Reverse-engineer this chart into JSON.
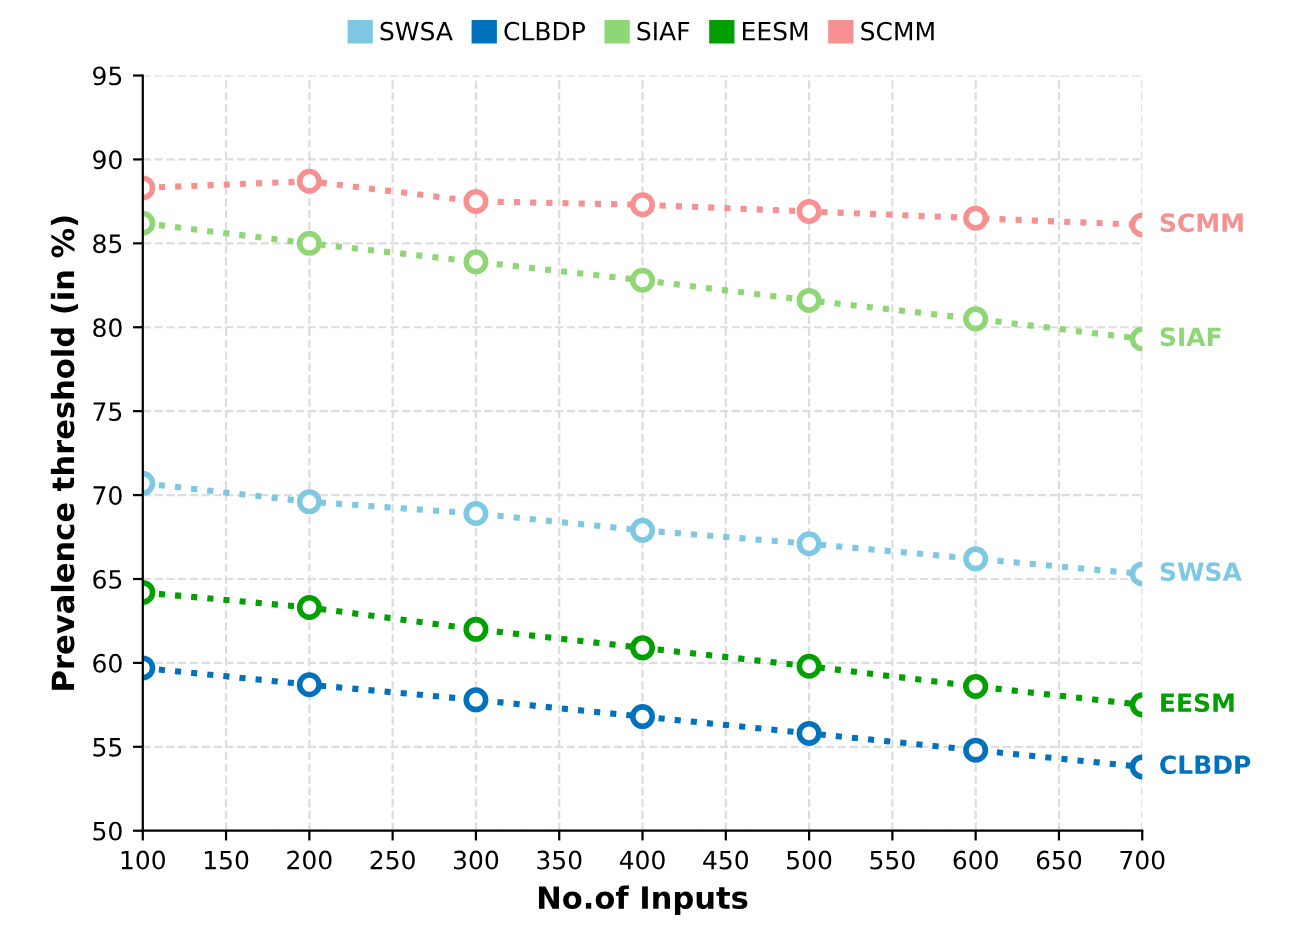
{
  "chart_data": {
    "type": "line",
    "xlabel": "No.of Inputs",
    "ylabel": "Prevalence threshold (in %)",
    "x": [
      100,
      200,
      300,
      400,
      500,
      600,
      700
    ],
    "series": [
      {
        "name": "SWSA",
        "color": "#7ec8e3",
        "values": [
          70.7,
          69.6,
          68.9,
          67.9,
          67.1,
          66.2,
          65.3
        ]
      },
      {
        "name": "CLBDP",
        "color": "#0072bd",
        "values": [
          59.7,
          58.7,
          57.8,
          56.8,
          55.8,
          54.8,
          53.8
        ]
      },
      {
        "name": "SIAF",
        "color": "#8fd776",
        "values": [
          86.2,
          85.0,
          83.9,
          82.8,
          81.6,
          80.5,
          79.3
        ]
      },
      {
        "name": "EESM",
        "color": "#00a000",
        "values": [
          64.2,
          63.3,
          62.0,
          60.9,
          59.8,
          58.6,
          57.5
        ]
      },
      {
        "name": "SCMM",
        "color": "#f79090",
        "values": [
          88.3,
          88.7,
          87.5,
          87.3,
          86.9,
          86.5,
          86.1
        ]
      }
    ],
    "xlim": [
      100,
      700
    ],
    "xticks": [
      100,
      150,
      200,
      250,
      300,
      350,
      400,
      450,
      500,
      550,
      600,
      650,
      700
    ],
    "ylim": [
      50,
      95
    ],
    "yticks": [
      50,
      55,
      60,
      65,
      70,
      75,
      80,
      85,
      90,
      95
    ],
    "grid": true,
    "legend": "top",
    "marker": "circle",
    "line_style": "dotted"
  }
}
